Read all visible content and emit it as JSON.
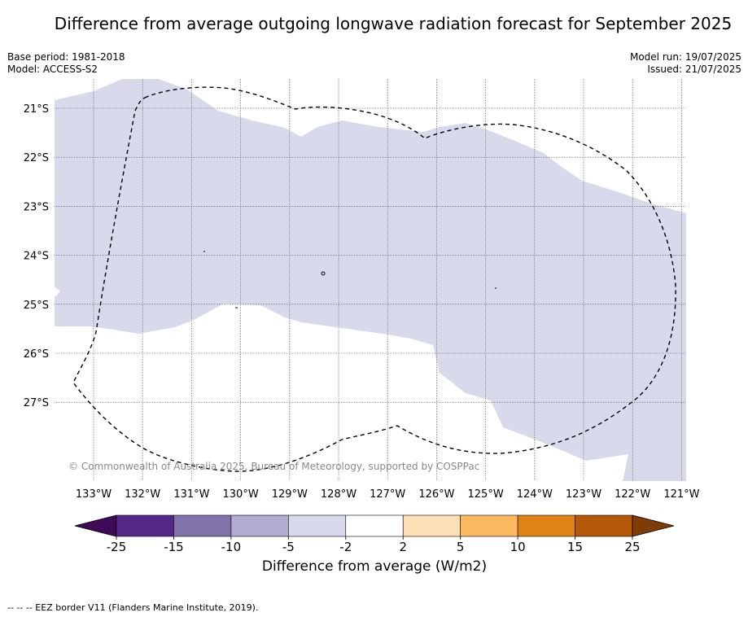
{
  "title": "Difference from average outgoing longwave radiation forecast for September 2025",
  "base_period": "Base period: 1981-2018",
  "model": "Model: ACCESS-S2",
  "model_run": "Model run: 19/07/2025",
  "issued": "Issued: 21/07/2025",
  "latitudes": [
    "21°S",
    "22°S",
    "23°S",
    "24°S",
    "25°S",
    "26°S",
    "27°S"
  ],
  "longitudes": [
    "133°W",
    "132°W",
    "131°W",
    "130°W",
    "129°W",
    "128°W",
    "127°W",
    "126°W",
    "125°W",
    "124°W",
    "123°W",
    "122°W",
    "121°W"
  ],
  "copyright": "© Commonwealth of Australia 2025, Bureau of Meteorology, supported by COSPPac",
  "colorbar": {
    "title": "Difference from average (W/m2)",
    "ticks": [
      "-25",
      "-15",
      "-10",
      "-5",
      "-2",
      "2",
      "5",
      "10",
      "15",
      "25"
    ],
    "colors": [
      "#3f0a57",
      "#542788",
      "#8073ac",
      "#b2abd2",
      "#d8daeb",
      "#ffffff",
      "#fee0b6",
      "#fdb863",
      "#e08214",
      "#b35806",
      "#7f3b08"
    ]
  },
  "map": {
    "shading_color": "#d8daeb",
    "border_label": "EEZ border V11 (Flanders Marine Institute, 2019)."
  },
  "footnote": "-- -- -- EEZ border V11 (Flanders Marine Institute, 2019)."
}
